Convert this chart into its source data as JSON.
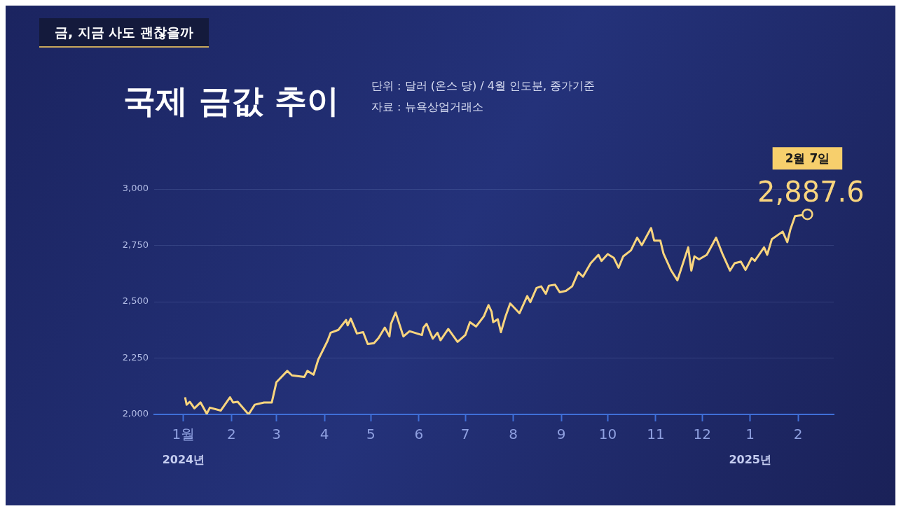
{
  "chart_data": {
    "type": "line",
    "title": "국제 금값 추이",
    "subtitle": "단위 : 달러 (온스 당) / 4월 인도분, 종가기준",
    "annotations": [
      "금, 지금 사도 괜찮을까",
      "자료 : 뉴욕상업거래소",
      "2월 7일",
      "2024년",
      "2025년"
    ],
    "x": [
      "2024-01-02",
      "2024-01-03",
      "2024-01-05",
      "2024-01-08",
      "2024-01-12",
      "2024-01-16",
      "2024-01-18",
      "2024-01-25",
      "2024-01-31",
      "2024-02-02",
      "2024-02-05",
      "2024-02-12",
      "2024-02-16",
      "2024-02-22",
      "2024-02-27",
      "2024-03-01",
      "2024-03-08",
      "2024-03-11",
      "2024-03-19",
      "2024-03-21",
      "2024-03-25",
      "2024-03-28",
      "2024-04-03",
      "2024-04-05",
      "2024-04-10",
      "2024-04-15",
      "2024-04-16",
      "2024-04-18",
      "2024-04-22",
      "2024-04-26",
      "2024-04-29",
      "2024-05-03",
      "2024-05-06",
      "2024-05-10",
      "2024-05-13",
      "2024-05-14",
      "2024-05-17",
      "2024-05-22",
      "2024-05-26",
      "2024-06-03",
      "2024-06-04",
      "2024-06-06",
      "2024-06-10",
      "2024-06-13",
      "2024-06-15",
      "2024-06-20",
      "2024-06-26",
      "2024-07-01",
      "2024-07-04",
      "2024-07-08",
      "2024-07-13",
      "2024-07-16",
      "2024-07-18",
      "2024-07-19",
      "2024-07-22",
      "2024-07-24",
      "2024-07-27",
      "2024-07-30",
      "2024-08-05",
      "2024-08-10",
      "2024-08-12",
      "2024-08-16",
      "2024-08-19",
      "2024-08-22",
      "2024-08-24",
      "2024-08-28",
      "2024-08-31",
      "2024-09-04",
      "2024-09-08",
      "2024-09-12",
      "2024-09-15",
      "2024-09-20",
      "2024-09-25",
      "2024-09-27",
      "2024-10-01",
      "2024-10-05",
      "2024-10-08",
      "2024-10-11",
      "2024-10-16",
      "2024-10-20",
      "2024-10-23",
      "2024-10-29",
      "2024-10-31",
      "2024-11-04",
      "2024-11-06",
      "2024-11-11",
      "2024-11-15",
      "2024-11-22",
      "2024-11-24",
      "2024-11-26",
      "2024-11-29",
      "2024-12-04",
      "2024-12-10",
      "2024-12-14",
      "2024-12-19",
      "2024-12-22",
      "2024-12-26",
      "2024-12-29",
      "2025-01-02",
      "2025-01-04",
      "2025-01-10",
      "2025-01-12",
      "2025-01-15",
      "2025-01-22",
      "2025-01-25",
      "2025-01-27",
      "2025-01-30",
      "2025-02-07"
    ],
    "series": [
      {
        "color": "#f9d57e",
        "value_labels": [
          null,
          null,
          null,
          null,
          null,
          null,
          null,
          null,
          null,
          null,
          null,
          null,
          null,
          null,
          null,
          null,
          null,
          null,
          null,
          null,
          null,
          null,
          null,
          null,
          null,
          null,
          null,
          null,
          null,
          null,
          null,
          null,
          null,
          null,
          null,
          null,
          null,
          null,
          null,
          null,
          null,
          null,
          null,
          null,
          null,
          null,
          null,
          null,
          null,
          null,
          null,
          null,
          null,
          null,
          null,
          null,
          null,
          null,
          null,
          null,
          null,
          null,
          null,
          null,
          null,
          null,
          null,
          null,
          null,
          null,
          null,
          null,
          null,
          null,
          null,
          null,
          null,
          null,
          null,
          null,
          null,
          null,
          null,
          null,
          null,
          null,
          null,
          null,
          null,
          null,
          null,
          null,
          null,
          null,
          null,
          null,
          null,
          null,
          null,
          null,
          null,
          null,
          null,
          null,
          null,
          null,
          null,
          "2,887.6"
        ],
        "values": [
          2076,
          2043,
          2056,
          2027,
          2053,
          2003,
          2030,
          2017,
          2076,
          2053,
          2056,
          2000,
          2043,
          2053,
          2053,
          2143,
          2193,
          2173,
          2166,
          2193,
          2176,
          2243,
          2326,
          2362,
          2375,
          2419,
          2395,
          2425,
          2359,
          2365,
          2312,
          2316,
          2339,
          2385,
          2346,
          2402,
          2452,
          2346,
          2369,
          2352,
          2385,
          2402,
          2336,
          2362,
          2329,
          2379,
          2322,
          2352,
          2409,
          2390,
          2435,
          2485,
          2455,
          2409,
          2422,
          2365,
          2435,
          2492,
          2449,
          2525,
          2498,
          2561,
          2568,
          2535,
          2571,
          2575,
          2542,
          2548,
          2568,
          2631,
          2611,
          2671,
          2708,
          2681,
          2711,
          2694,
          2651,
          2701,
          2728,
          2784,
          2751,
          2827,
          2771,
          2771,
          2714,
          2638,
          2595,
          2741,
          2638,
          2701,
          2688,
          2708,
          2784,
          2714,
          2638,
          2671,
          2678,
          2641,
          2694,
          2681,
          2741,
          2708,
          2777,
          2811,
          2764,
          2821,
          2880,
          2887.6
        ]
      }
    ],
    "xlim": [
      "2023-12-13",
      "2025-02-24"
    ],
    "xticks": [
      {
        "value": "2024-01-01",
        "label": "1월"
      },
      {
        "value": "2024-02-01",
        "label": "2"
      },
      {
        "value": "2024-03-01",
        "label": "3"
      },
      {
        "value": "2024-04-01",
        "label": "4"
      },
      {
        "value": "2024-05-01",
        "label": "5"
      },
      {
        "value": "2024-06-01",
        "label": "6"
      },
      {
        "value": "2024-07-01",
        "label": "7"
      },
      {
        "value": "2024-08-01",
        "label": "8"
      },
      {
        "value": "2024-09-01",
        "label": "9"
      },
      {
        "value": "2024-10-01",
        "label": "10"
      },
      {
        "value": "2024-11-01",
        "label": "11"
      },
      {
        "value": "2024-12-01",
        "label": "12"
      },
      {
        "value": "2025-01-01",
        "label": "1"
      },
      {
        "value": "2025-02-01",
        "label": "2"
      }
    ],
    "ylim": [
      2000,
      3000
    ],
    "yticks": [
      {
        "value": 2000,
        "label": "2,000"
      },
      {
        "value": 2250,
        "label": "2,250"
      },
      {
        "value": 2500,
        "label": "2,500"
      },
      {
        "value": 2750,
        "label": "2,750"
      },
      {
        "value": 3000,
        "label": "3,000"
      }
    ],
    "grid": "y"
  }
}
